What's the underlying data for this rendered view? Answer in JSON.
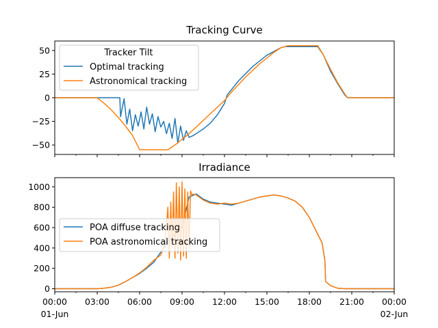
{
  "chart_data": [
    {
      "type": "line",
      "title": "Tracking Curve",
      "xlabel": "",
      "ylabel": "",
      "xlim": [
        0,
        24
      ],
      "ylim": [
        -60,
        60
      ],
      "yticks": [
        -50,
        -25,
        0,
        25,
        50
      ],
      "legend": {
        "title": "Tracker Tilt",
        "placement": "top-left"
      },
      "colors": {
        "optimal": "#1f77b4",
        "astronomical": "#ff7f0e"
      },
      "series": [
        {
          "name": "Optimal tracking",
          "x": [
            0,
            4.6,
            4.65,
            4.9,
            5.1,
            5.3,
            5.5,
            5.7,
            5.9,
            6.1,
            6.3,
            6.5,
            6.7,
            6.9,
            7.1,
            7.3,
            7.5,
            7.7,
            7.9,
            8.1,
            8.3,
            8.5,
            8.7,
            8.9,
            9.1,
            9.3,
            9.5,
            9.8,
            10.1,
            10.5,
            11.0,
            11.5,
            12.0,
            12.2,
            13,
            14,
            15,
            16,
            16.3,
            16.6,
            18.6,
            19,
            19.5,
            20,
            20.5,
            20.7,
            24
          ],
          "y": [
            0,
            0,
            -20,
            -1,
            -28,
            -12,
            -35,
            -18,
            -30,
            -15,
            -33,
            -10,
            -28,
            -17,
            -36,
            -20,
            -31,
            -25,
            -38,
            -27,
            -43,
            -22,
            -48,
            -30,
            -45,
            -35,
            -42,
            -40,
            -37,
            -33,
            -27,
            -18,
            -6,
            3,
            18,
            33,
            45,
            53,
            54,
            54,
            54,
            45,
            28,
            15,
            3,
            0,
            0
          ]
        },
        {
          "name": "Astronomical tracking",
          "x": [
            0,
            3.0,
            3.5,
            4.0,
            4.5,
            5.0,
            5.5,
            6.0,
            8.0,
            8.5,
            9.0,
            9.5,
            10.0,
            10.5,
            11.0,
            11.5,
            12.0,
            12.5,
            13.0,
            13.5,
            14.0,
            14.5,
            15.0,
            15.5,
            16.0,
            16.5,
            18.6,
            19.0,
            19.5,
            20.0,
            20.5,
            20.7,
            24
          ],
          "y": [
            0,
            0,
            -6,
            -13,
            -21,
            -30,
            -40,
            -55,
            -55,
            -50,
            -44,
            -38,
            -31,
            -24,
            -17,
            -10,
            -3,
            6,
            14,
            22,
            29,
            36,
            42,
            48,
            53,
            55,
            55,
            45,
            30,
            16,
            4,
            0,
            0
          ]
        }
      ]
    },
    {
      "type": "line",
      "title": "Irradiance",
      "xlabel": "",
      "ylabel": "",
      "xlim": [
        0,
        24
      ],
      "ylim": [
        -30,
        1090
      ],
      "yticks": [
        0,
        200,
        400,
        600,
        800,
        1000
      ],
      "xticks": [
        {
          "value": 0,
          "label": "00:00",
          "sublabel": "01-Jun"
        },
        {
          "value": 3,
          "label": "03:00",
          "sublabel": ""
        },
        {
          "value": 6,
          "label": "06:00",
          "sublabel": ""
        },
        {
          "value": 9,
          "label": "09:00",
          "sublabel": ""
        },
        {
          "value": 12,
          "label": "12:00",
          "sublabel": ""
        },
        {
          "value": 15,
          "label": "15:00",
          "sublabel": ""
        },
        {
          "value": 18,
          "label": "18:00",
          "sublabel": ""
        },
        {
          "value": 21,
          "label": "21:00",
          "sublabel": ""
        },
        {
          "value": 24,
          "label": "00:00",
          "sublabel": "02-Jun"
        }
      ],
      "legend": {
        "title": "",
        "placement": "center-left"
      },
      "colors": {
        "diffuse": "#1f77b4",
        "astronomical": "#ff7f0e"
      },
      "series": [
        {
          "name": "POA diffuse tracking",
          "x": [
            0,
            3.0,
            3.5,
            4.0,
            4.5,
            5.0,
            5.5,
            6.0,
            6.5,
            7.0,
            7.3,
            7.6,
            8.0,
            8.5,
            9.0,
            9.5,
            10.0,
            10.5,
            11.0,
            11.5,
            12.0,
            12.5,
            13.0,
            13.5,
            14.0,
            14.5,
            15.0,
            15.5,
            16.0,
            16.5,
            17.0,
            17.5,
            18.0,
            18.5,
            18.9,
            19.1,
            19.15,
            19.5,
            20.0,
            20.5,
            24
          ],
          "y": [
            0,
            0,
            5,
            15,
            35,
            70,
            110,
            150,
            200,
            260,
            320,
            380,
            460,
            540,
            600,
            900,
            930,
            880,
            850,
            840,
            830,
            820,
            840,
            860,
            880,
            900,
            910,
            920,
            910,
            890,
            860,
            800,
            700,
            560,
            450,
            280,
            70,
            30,
            5,
            0,
            0
          ]
        },
        {
          "name": "POA astronomical tracking",
          "x": [
            0,
            3.0,
            3.5,
            4.0,
            4.5,
            5.0,
            5.5,
            6.0,
            6.5,
            7.0,
            7.5,
            7.8,
            8.0,
            8.1,
            8.2,
            8.3,
            8.4,
            8.5,
            8.6,
            8.7,
            8.8,
            8.9,
            9.0,
            9.1,
            9.2,
            9.3,
            9.4,
            9.5,
            9.6,
            9.7,
            9.8,
            10.0,
            10.5,
            11.0,
            11.5,
            12.0,
            12.5,
            13.0,
            13.5,
            14.0,
            14.5,
            15.0,
            15.5,
            16.0,
            16.5,
            17.0,
            17.5,
            18.0,
            18.5,
            18.9,
            19.1,
            19.15,
            19.5,
            20.0,
            20.5,
            24
          ],
          "y": [
            0,
            0,
            5,
            15,
            35,
            70,
            110,
            155,
            210,
            280,
            330,
            450,
            800,
            300,
            850,
            400,
            950,
            300,
            1040,
            350,
            1000,
            280,
            1050,
            320,
            980,
            300,
            950,
            400,
            960,
            920,
            930,
            920,
            870,
            840,
            830,
            840,
            830,
            840,
            860,
            880,
            900,
            910,
            920,
            910,
            890,
            860,
            800,
            700,
            560,
            450,
            280,
            70,
            30,
            5,
            0,
            0
          ]
        }
      ]
    }
  ]
}
